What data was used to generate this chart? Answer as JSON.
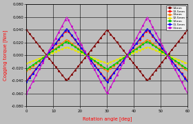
{
  "title": "",
  "xlabel": "Rotation angle [deg]",
  "ylabel": "Cogging torque [Nm]",
  "xlim": [
    0,
    60
  ],
  "ylim": [
    -0.08,
    0.08
  ],
  "yticks": [
    -0.08,
    -0.06,
    -0.04,
    -0.02,
    0.0,
    0.02,
    0.04,
    0.06,
    0.08
  ],
  "xticks": [
    0,
    10,
    20,
    30,
    40,
    50,
    60
  ],
  "background_color": "#bebebe",
  "series": [
    {
      "label": "14mm",
      "color": "#800000",
      "amplitude": 0.04,
      "phase": 0.5
    },
    {
      "label": "13.5mm",
      "color": "#ff1010",
      "amplitude": 0.04,
      "phase": 0.0
    },
    {
      "label": "13mm",
      "color": "#ff8000",
      "amplitude": 0.025,
      "phase": 0.0
    },
    {
      "label": "12.5mm",
      "color": "#e8e800",
      "amplitude": 0.013,
      "phase": 0.0
    },
    {
      "label": "12mm",
      "color": "#00cc00",
      "amplitude": 0.022,
      "phase": 0.0
    },
    {
      "label": "11.5mm",
      "color": "#0000ff",
      "amplitude": 0.042,
      "phase": 0.0
    },
    {
      "label": "11mm",
      "color": "#cc00cc",
      "amplitude": 0.06,
      "phase": 0.0
    }
  ],
  "period": 30,
  "num_points": 400,
  "marker": "s",
  "markersize": 1.0,
  "markevery": 8,
  "linewidth": 0.8
}
